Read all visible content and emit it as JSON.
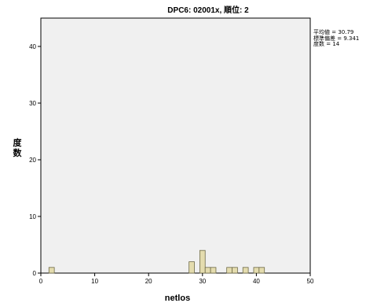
{
  "chart_data": {
    "type": "bar",
    "title": "DPC6: 02001x, 順位: 2",
    "xlabel": "netlos",
    "ylabel": "度数",
    "xlim": [
      0,
      50
    ],
    "ylim": [
      0,
      45
    ],
    "x_ticks": [
      0,
      10,
      20,
      30,
      40,
      50
    ],
    "y_ticks": [
      0,
      10,
      20,
      30,
      40
    ],
    "bin_width": 1,
    "bins": [
      {
        "x": 2,
        "count": 1
      },
      {
        "x": 28,
        "count": 2
      },
      {
        "x": 30,
        "count": 4
      },
      {
        "x": 31,
        "count": 1
      },
      {
        "x": 32,
        "count": 1
      },
      {
        "x": 35,
        "count": 1
      },
      {
        "x": 36,
        "count": 1
      },
      {
        "x": 38,
        "count": 1
      },
      {
        "x": 40,
        "count": 1
      },
      {
        "x": 41,
        "count": 1
      }
    ],
    "stats": {
      "mean_label": "平均値 = 30.79",
      "sd_label": "標準偏差 = 9.341",
      "n_label": "度数 = 14"
    },
    "colors": {
      "bar_fill": "#e4dcae",
      "bar_stroke": "#6e6a48",
      "plot_bg": "#f0f0f0"
    }
  }
}
